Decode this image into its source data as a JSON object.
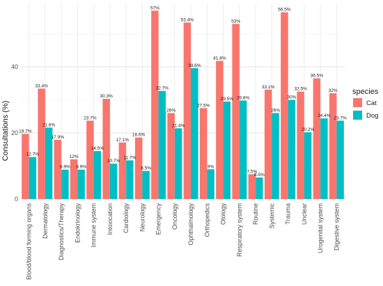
{
  "chart_data": {
    "type": "bar",
    "ylabel": "Consultations (%)",
    "xlabel": "",
    "ylim": [
      0,
      60
    ],
    "yticks": [
      0,
      20,
      40
    ],
    "grid": true,
    "legend": {
      "title": "species",
      "position": "right"
    },
    "categories": [
      "Blood/blood forming organs",
      "Dermatology",
      "Diagnostics/Therapy",
      "Endokrinology",
      "Immune system",
      "Intoxication",
      "Cardiology",
      "Neurology",
      "Emergency",
      "Oncology",
      "Ophthalmology",
      "Orthopedics",
      "Otology",
      "Respiratory system",
      "Routine",
      "Systemic",
      "Trauma",
      "Unclear",
      "Urogenital system",
      "Digestive system"
    ],
    "series": [
      {
        "name": "Cat",
        "color": "#F8766D",
        "values": [
          19.7,
          33.4,
          17.9,
          12,
          23.7,
          30.3,
          17.1,
          18.6,
          57,
          26,
          53.4,
          27.5,
          41.8,
          53,
          7.5,
          33.1,
          56.5,
          32.5,
          36.5,
          32
        ],
        "labels": [
          "19.7%",
          "33.4%",
          "17.9%",
          "12%",
          "23.7%",
          "30.3%",
          "17.1%",
          "18.6%",
          "57%",
          "26%",
          "53.4%",
          "27.5%",
          "41.8%",
          "53%",
          "7.5%",
          "33.1%",
          "56.5%",
          "32.5%",
          "36.5%",
          "32%"
        ]
      },
      {
        "name": "Dog",
        "color": "#00BFC4",
        "values": [
          12.7,
          21.6,
          8.9,
          8.9,
          14.5,
          10.7,
          11.7,
          8.5,
          32.7,
          21.4,
          39.6,
          9,
          29.5,
          29.8,
          6.5,
          26,
          30,
          20.2,
          24.4,
          23.7
        ],
        "labels": [
          "12.7%",
          "21.6%",
          "8.9%",
          "8.9%",
          "14.5%",
          "10.7%",
          "11.7%",
          "8.5%",
          "32.7%",
          "21.4%",
          "39.6%",
          "9%",
          "29.5%",
          "29.8%",
          "6.5%",
          "26%",
          "30%",
          "20.2%",
          "24.4%",
          "23.7%"
        ]
      }
    ]
  }
}
